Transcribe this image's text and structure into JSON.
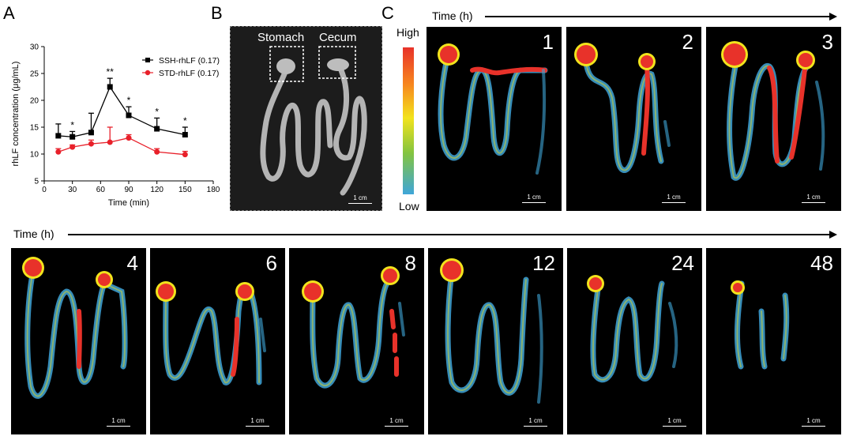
{
  "panels": {
    "a": "A",
    "b": "B",
    "c": "C"
  },
  "chart_data": {
    "type": "line",
    "xlabel": "Time (min)",
    "ylabel": "rhLF concentration (μg/mL)",
    "xlim": [
      0,
      180
    ],
    "ylim": [
      5,
      30
    ],
    "xticks": [
      0,
      30,
      60,
      90,
      120,
      150,
      180
    ],
    "yticks": [
      5,
      10,
      15,
      20,
      25,
      30
    ],
    "grid": false,
    "legend_position": "top-right",
    "x": [
      15,
      30,
      50,
      70,
      90,
      120,
      150
    ],
    "series": [
      {
        "name": "SSH-rhLF (0.17)",
        "color": "#000000",
        "marker": "square",
        "values": [
          13.4,
          13.2,
          14.0,
          22.5,
          17.2,
          14.7,
          13.6
        ],
        "errors": [
          2.2,
          1.0,
          3.6,
          1.6,
          1.6,
          2.0,
          1.4
        ]
      },
      {
        "name": "STD-rhLF (0.17)",
        "color": "#e8202a",
        "marker": "circle",
        "values": [
          10.4,
          11.3,
          11.9,
          12.2,
          13.0,
          10.4,
          9.9
        ],
        "errors": [
          0.6,
          0.4,
          0.7,
          2.8,
          0.6,
          0.6,
          0.6
        ]
      }
    ],
    "annotations": [
      {
        "x": 30,
        "label": "*"
      },
      {
        "x": 70,
        "label": "**"
      },
      {
        "x": 90,
        "label": "*"
      },
      {
        "x": 120,
        "label": "*"
      },
      {
        "x": 150,
        "label": "*"
      }
    ]
  },
  "photo": {
    "stomach": "Stomach",
    "cecum": "Cecum",
    "scale": "1 cm"
  },
  "colorbar": {
    "high": "High",
    "low": "Low"
  },
  "time_label": "Time (h)",
  "tiles_top": [
    {
      "t": "1",
      "scale": "1 cm"
    },
    {
      "t": "2",
      "scale": "1 cm"
    },
    {
      "t": "3",
      "scale": "1 cm"
    }
  ],
  "tiles_bottom": [
    {
      "t": "4",
      "scale": "1 cm"
    },
    {
      "t": "6",
      "scale": "1 cm"
    },
    {
      "t": "8",
      "scale": "1 cm"
    },
    {
      "t": "12",
      "scale": "1 cm"
    },
    {
      "t": "24",
      "scale": "1 cm"
    },
    {
      "t": "48",
      "scale": "1 cm"
    }
  ],
  "colors": {
    "high": "#e8322a",
    "mid": "#f2e31c",
    "low": "#3fa6d9",
    "background": "#000000"
  }
}
